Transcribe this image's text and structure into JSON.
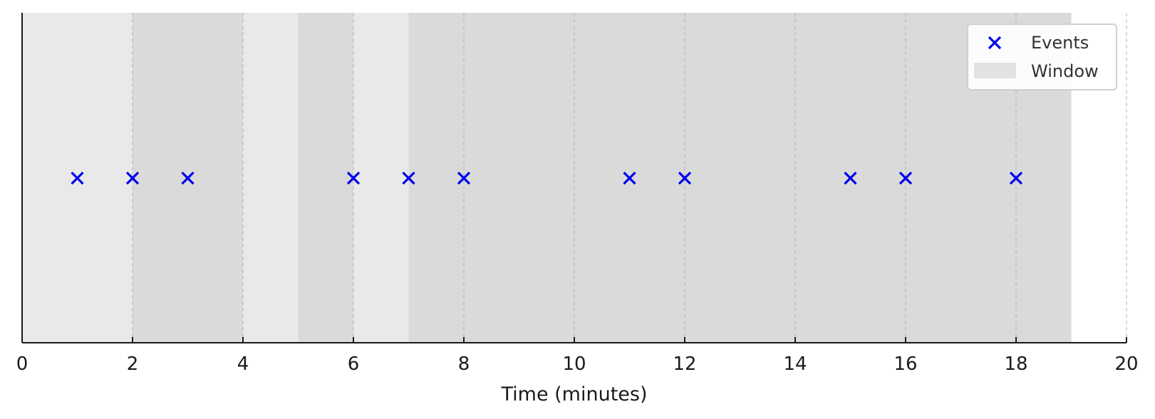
{
  "chart_data": {
    "type": "scatter",
    "title": "",
    "xlabel": "Time (minutes)",
    "ylabel": "",
    "xlim": [
      0,
      20
    ],
    "x_ticks": [
      0,
      2,
      4,
      6,
      8,
      10,
      12,
      14,
      16,
      18,
      20
    ],
    "x_tick_labels": [
      "0",
      "2",
      "4",
      "6",
      "8",
      "10",
      "12",
      "14",
      "16",
      "18",
      "20"
    ],
    "grid": "vertical dashed at x ticks",
    "legend_position": "top-right",
    "series": [
      {
        "name": "Events",
        "marker": "x",
        "color": "#0000ee",
        "x": [
          1,
          2,
          3,
          6,
          7,
          8,
          11,
          12,
          15,
          16,
          18
        ]
      }
    ],
    "windows": {
      "name": "Window",
      "color": "#bdbdbd",
      "ranges": [
        [
          0,
          4
        ],
        [
          2,
          6
        ],
        [
          5,
          9
        ],
        [
          7,
          11
        ],
        [
          9,
          13
        ],
        [
          11,
          15
        ],
        [
          13,
          17
        ],
        [
          15,
          19
        ],
        [
          17,
          19
        ]
      ]
    }
  }
}
